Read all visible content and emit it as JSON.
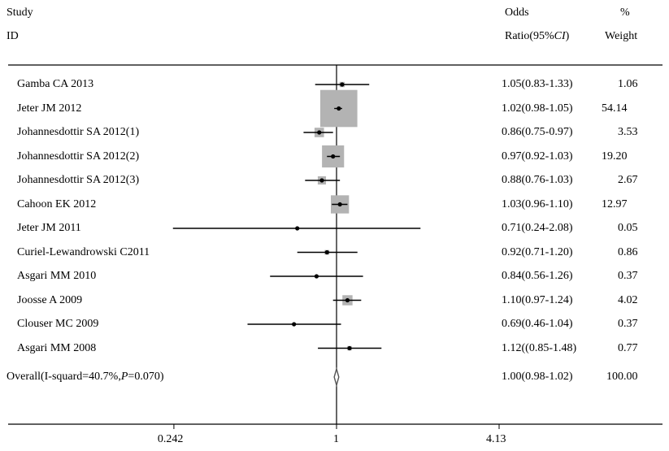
{
  "header": {
    "study_label": "Study",
    "id_label": "ID",
    "or_label_1": "Odds",
    "or_label_2_prefix": "Ratio(95%",
    "or_label_2_italic": "CI",
    "or_label_2_suffix": ")",
    "weight_label_1": "%",
    "weight_label_2": "Weight"
  },
  "chart_data": {
    "type": "forest",
    "x_scale": "log",
    "reference_line": 1,
    "x_ticks": [
      {
        "value": 0.242,
        "label": "0.242"
      },
      {
        "value": 1,
        "label": "1"
      },
      {
        "value": 4.13,
        "label": "4.13"
      }
    ],
    "studies": [
      {
        "name": "Gamba CA 2013",
        "or": 1.05,
        "lo": 0.83,
        "hi": 1.33,
        "ci_text": "1.05(0.83-1.33)",
        "weight": 1.06,
        "weight_text": "1.06"
      },
      {
        "name": "Jeter JM 2012",
        "or": 1.02,
        "lo": 0.98,
        "hi": 1.05,
        "ci_text": "1.02(0.98-1.05)",
        "weight": 54.14,
        "weight_text": "54.14"
      },
      {
        "name": "Johannesdottir SA 2012(1)",
        "or": 0.86,
        "lo": 0.75,
        "hi": 0.97,
        "ci_text": "0.86(0.75-0.97)",
        "weight": 3.53,
        "weight_text": "3.53"
      },
      {
        "name": "Johannesdottir SA 2012(2)",
        "or": 0.97,
        "lo": 0.92,
        "hi": 1.03,
        "ci_text": "0.97(0.92-1.03)",
        "weight": 19.2,
        "weight_text": "19.20"
      },
      {
        "name": "Johannesdottir SA 2012(3)",
        "or": 0.88,
        "lo": 0.76,
        "hi": 1.03,
        "ci_text": "0.88(0.76-1.03)",
        "weight": 2.67,
        "weight_text": "2.67"
      },
      {
        "name": "Cahoon EK 2012",
        "or": 1.03,
        "lo": 0.96,
        "hi": 1.1,
        "ci_text": "1.03(0.96-1.10)",
        "weight": 12.97,
        "weight_text": "12.97"
      },
      {
        "name": "Jeter JM 2011",
        "or": 0.71,
        "lo": 0.24,
        "hi": 2.08,
        "ci_text": "0.71(0.24-2.08)",
        "weight": 0.05,
        "weight_text": "0.05"
      },
      {
        "name": "Curiel-Lewandrowski C2011",
        "or": 0.92,
        "lo": 0.71,
        "hi": 1.2,
        "ci_text": "0.92(0.71-1.20)",
        "weight": 0.86,
        "weight_text": "0.86"
      },
      {
        "name": "Asgari MM 2010",
        "or": 0.84,
        "lo": 0.56,
        "hi": 1.26,
        "ci_text": "0.84(0.56-1.26)",
        "weight": 0.37,
        "weight_text": "0.37"
      },
      {
        "name": "Joosse A 2009",
        "or": 1.1,
        "lo": 0.97,
        "hi": 1.24,
        "ci_text": "1.10(0.97-1.24)",
        "weight": 4.02,
        "weight_text": "4.02"
      },
      {
        "name": "Clouser MC 2009",
        "or": 0.69,
        "lo": 0.46,
        "hi": 1.04,
        "ci_text": "0.69(0.46-1.04)",
        "weight": 0.37,
        "weight_text": "0.37"
      },
      {
        "name": "Asgari MM 2008",
        "or": 1.12,
        "lo": 0.85,
        "hi": 1.48,
        "ci_text": "1.12((0.85-1.48)",
        "weight": 0.77,
        "weight_text": "0.77"
      }
    ],
    "overall": {
      "label_prefix": "Overall(I-squard=40.7%,",
      "label_p_italic": "P",
      "label_suffix": "=0.070)",
      "or": 1.0,
      "lo": 0.98,
      "hi": 1.02,
      "ci_text": "1.00(0.98-1.02)",
      "weight_text": "100.00"
    },
    "colors": {
      "weight_box": "#b3b3b3",
      "line": "#000000"
    }
  }
}
